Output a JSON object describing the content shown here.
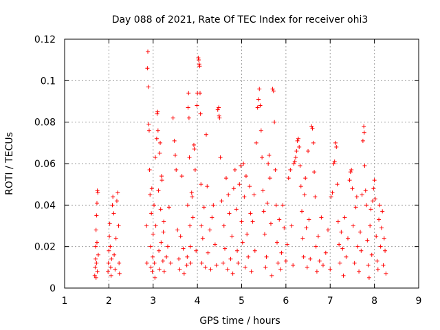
{
  "chart_data": {
    "type": "scatter",
    "title": "Day 088 of 2021, Rate Of TEC Index for receiver ohi3",
    "xlabel": "GPS time / hours",
    "ylabel": "ROTI / TECUs",
    "xlim": [
      1,
      9
    ],
    "ylim": [
      0,
      0.12
    ],
    "x_ticks": [
      1,
      2,
      3,
      4,
      5,
      6,
      7,
      8,
      9
    ],
    "x_tick_labels": [
      "1",
      "2",
      "3",
      "4",
      "5",
      "6",
      "7",
      "8",
      "9"
    ],
    "y_ticks": [
      0,
      0.02,
      0.04,
      0.06,
      0.08,
      0.1,
      0.12
    ],
    "y_tick_labels": [
      "0",
      "0.02",
      "0.04",
      "0.06",
      "0.08",
      "0.1",
      "0.12"
    ],
    "grid": true,
    "marker": "+",
    "color": "#ff0000",
    "series": [
      {
        "points": [
          [
            1.68,
            0.006
          ],
          [
            1.69,
            0.01
          ],
          [
            1.7,
            0.014
          ],
          [
            1.7,
            0.02
          ],
          [
            1.71,
            0.028
          ],
          [
            1.72,
            0.035
          ],
          [
            1.73,
            0.041
          ],
          [
            1.74,
            0.047
          ],
          [
            1.75,
            0.046
          ],
          [
            1.72,
            0.012
          ],
          [
            1.74,
            0.008
          ],
          [
            1.76,
            0.016
          ],
          [
            1.73,
            0.022
          ],
          [
            1.71,
            0.005
          ],
          [
            1.98,
            0.008
          ],
          [
            1.99,
            0.012
          ],
          [
            2.0,
            0.018
          ],
          [
            2.01,
            0.025
          ],
          [
            2.02,
            0.031
          ],
          [
            2.03,
            0.02
          ],
          [
            2.04,
            0.01
          ],
          [
            2.05,
            0.006
          ],
          [
            2.06,
            0.014
          ],
          [
            2.08,
            0.04
          ],
          [
            2.09,
            0.044
          ],
          [
            2.11,
            0.036
          ],
          [
            2.12,
            0.016
          ],
          [
            2.14,
            0.009
          ],
          [
            2.16,
            0.024
          ],
          [
            2.18,
            0.042
          ],
          [
            2.2,
            0.046
          ],
          [
            2.22,
            0.03
          ],
          [
            2.23,
            0.012
          ],
          [
            2.24,
            0.007
          ],
          [
            2.85,
            0.03
          ],
          [
            2.86,
            0.012
          ],
          [
            2.87,
            0.106
          ],
          [
            2.88,
            0.114
          ],
          [
            2.89,
            0.097
          ],
          [
            2.9,
            0.079
          ],
          [
            2.91,
            0.076
          ],
          [
            2.92,
            0.057
          ],
          [
            2.93,
            0.045
          ],
          [
            2.94,
            0.02
          ],
          [
            2.95,
            0.01
          ],
          [
            2.96,
            0.036
          ],
          [
            2.97,
            0.048
          ],
          [
            2.98,
            0.008
          ],
          [
            2.99,
            0.015
          ],
          [
            3.0,
            0.026
          ],
          [
            3.02,
            0.04
          ],
          [
            3.03,
            0.012
          ],
          [
            3.04,
            0.005
          ],
          [
            3.05,
            0.063
          ],
          [
            3.06,
            0.03
          ],
          [
            3.08,
            0.072
          ],
          [
            3.09,
            0.084
          ],
          [
            3.1,
            0.085
          ],
          [
            3.11,
            0.076
          ],
          [
            3.12,
            0.047
          ],
          [
            3.13,
            0.018
          ],
          [
            3.14,
            0.009
          ],
          [
            3.15,
            0.065
          ],
          [
            3.16,
            0.07
          ],
          [
            3.17,
            0.038
          ],
          [
            3.18,
            0.022
          ],
          [
            3.19,
            0.054
          ],
          [
            3.2,
            0.052
          ],
          [
            3.22,
            0.013
          ],
          [
            3.23,
            0.027
          ],
          [
            3.24,
            0.032
          ],
          [
            3.25,
            0.008
          ],
          [
            3.3,
            0.015
          ],
          [
            3.33,
            0.02
          ],
          [
            3.36,
            0.039
          ],
          [
            3.4,
            0.012
          ],
          [
            3.45,
            0.082
          ],
          [
            3.48,
            0.071
          ],
          [
            3.5,
            0.064
          ],
          [
            3.52,
            0.057
          ],
          [
            3.55,
            0.028
          ],
          [
            3.58,
            0.014
          ],
          [
            3.6,
            0.009
          ],
          [
            3.62,
            0.025
          ],
          [
            3.65,
            0.054
          ],
          [
            3.68,
            0.019
          ],
          [
            3.7,
            0.007
          ],
          [
            3.76,
            0.011
          ],
          [
            3.77,
            0.015
          ],
          [
            3.78,
            0.04
          ],
          [
            3.79,
            0.087
          ],
          [
            3.8,
            0.094
          ],
          [
            3.81,
            0.082
          ],
          [
            3.82,
            0.063
          ],
          [
            3.83,
            0.03
          ],
          [
            3.84,
            0.02
          ],
          [
            3.85,
            0.012
          ],
          [
            3.87,
            0.046
          ],
          [
            3.88,
            0.044
          ],
          [
            3.9,
            0.034
          ],
          [
            3.92,
            0.069
          ],
          [
            3.93,
            0.067
          ],
          [
            3.95,
            0.057
          ],
          [
            3.97,
            0.018
          ],
          [
            3.99,
            0.088
          ],
          [
            4.0,
            0.094
          ],
          [
            4.02,
            0.111
          ],
          [
            4.03,
            0.11
          ],
          [
            4.04,
            0.108
          ],
          [
            4.05,
            0.107
          ],
          [
            4.06,
            0.094
          ],
          [
            4.07,
            0.084
          ],
          [
            4.08,
            0.05
          ],
          [
            4.09,
            0.03
          ],
          [
            4.1,
            0.012
          ],
          [
            4.12,
            0.024
          ],
          [
            4.15,
            0.039
          ],
          [
            4.18,
            0.01
          ],
          [
            4.2,
            0.074
          ],
          [
            4.22,
            0.049
          ],
          [
            4.24,
            0.017
          ],
          [
            4.28,
            0.028
          ],
          [
            4.3,
            0.009
          ],
          [
            4.33,
            0.034
          ],
          [
            4.36,
            0.04
          ],
          [
            4.4,
            0.021
          ],
          [
            4.43,
            0.011
          ],
          [
            4.46,
            0.086
          ],
          [
            4.48,
            0.087
          ],
          [
            4.49,
            0.083
          ],
          [
            4.5,
            0.082
          ],
          [
            4.52,
            0.063
          ],
          [
            4.55,
            0.042
          ],
          [
            4.58,
            0.012
          ],
          [
            4.6,
            0.03
          ],
          [
            4.62,
            0.019
          ],
          [
            4.65,
            0.053
          ],
          [
            4.68,
            0.009
          ],
          [
            4.7,
            0.045
          ],
          [
            4.72,
            0.036
          ],
          [
            4.75,
            0.014
          ],
          [
            4.78,
            0.025
          ],
          [
            4.8,
            0.007
          ],
          [
            4.82,
            0.048
          ],
          [
            4.85,
            0.057
          ],
          [
            4.88,
            0.038
          ],
          [
            4.9,
            0.018
          ],
          [
            4.92,
            0.012
          ],
          [
            4.95,
            0.05
          ],
          [
            4.98,
            0.059
          ],
          [
            5.0,
            0.032
          ],
          [
            5.02,
            0.022
          ],
          [
            5.04,
            0.06
          ],
          [
            5.06,
            0.044
          ],
          [
            5.08,
            0.01
          ],
          [
            5.1,
            0.054
          ],
          [
            5.12,
            0.026
          ],
          [
            5.15,
            0.015
          ],
          [
            5.18,
            0.049
          ],
          [
            5.2,
            0.036
          ],
          [
            5.22,
            0.008
          ],
          [
            5.25,
            0.032
          ],
          [
            5.28,
            0.045
          ],
          [
            5.3,
            0.018
          ],
          [
            5.33,
            0.07
          ],
          [
            5.36,
            0.087
          ],
          [
            5.38,
            0.091
          ],
          [
            5.4,
            0.096
          ],
          [
            5.42,
            0.088
          ],
          [
            5.44,
            0.076
          ],
          [
            5.46,
            0.063
          ],
          [
            5.48,
            0.047
          ],
          [
            5.5,
            0.037
          ],
          [
            5.52,
            0.026
          ],
          [
            5.54,
            0.01
          ],
          [
            5.56,
            0.015
          ],
          [
            5.58,
            0.041
          ],
          [
            5.6,
            0.06
          ],
          [
            5.62,
            0.064
          ],
          [
            5.64,
            0.053
          ],
          [
            5.66,
            0.031
          ],
          [
            5.68,
            0.006
          ],
          [
            5.7,
            0.096
          ],
          [
            5.72,
            0.095
          ],
          [
            5.74,
            0.08
          ],
          [
            5.76,
            0.057
          ],
          [
            5.78,
            0.04
          ],
          [
            5.8,
            0.022
          ],
          [
            5.82,
            0.012
          ],
          [
            5.85,
            0.033
          ],
          [
            5.88,
            0.009
          ],
          [
            5.9,
            0.017
          ],
          [
            5.93,
            0.04
          ],
          [
            5.96,
            0.029
          ],
          [
            6.0,
            0.013
          ],
          [
            6.03,
            0.021
          ],
          [
            6.06,
            0.053
          ],
          [
            6.1,
            0.057
          ],
          [
            6.13,
            0.03
          ],
          [
            6.16,
            0.011
          ],
          [
            6.18,
            0.06
          ],
          [
            6.2,
            0.061
          ],
          [
            6.22,
            0.063
          ],
          [
            6.24,
            0.066
          ],
          [
            6.26,
            0.071
          ],
          [
            6.28,
            0.072
          ],
          [
            6.3,
            0.068
          ],
          [
            6.32,
            0.059
          ],
          [
            6.34,
            0.049
          ],
          [
            6.36,
            0.037
          ],
          [
            6.38,
            0.024
          ],
          [
            6.4,
            0.015
          ],
          [
            6.42,
            0.045
          ],
          [
            6.44,
            0.053
          ],
          [
            6.46,
            0.029
          ],
          [
            6.48,
            0.01
          ],
          [
            6.5,
            0.066
          ],
          [
            6.52,
            0.033
          ],
          [
            6.55,
            0.014
          ],
          [
            6.58,
            0.078
          ],
          [
            6.6,
            0.077
          ],
          [
            6.62,
            0.07
          ],
          [
            6.64,
            0.056
          ],
          [
            6.66,
            0.044
          ],
          [
            6.68,
            0.02
          ],
          [
            6.7,
            0.008
          ],
          [
            6.73,
            0.025
          ],
          [
            6.76,
            0.013
          ],
          [
            6.8,
            0.034
          ],
          [
            6.84,
            0.011
          ],
          [
            6.9,
            0.017
          ],
          [
            6.95,
            0.028
          ],
          [
            7.0,
            0.009
          ],
          [
            7.02,
            0.044
          ],
          [
            7.05,
            0.046
          ],
          [
            7.08,
            0.06
          ],
          [
            7.1,
            0.061
          ],
          [
            7.12,
            0.07
          ],
          [
            7.14,
            0.068
          ],
          [
            7.16,
            0.05
          ],
          [
            7.18,
            0.032
          ],
          [
            7.2,
            0.021
          ],
          [
            7.22,
            0.012
          ],
          [
            7.25,
            0.027
          ],
          [
            7.28,
            0.019
          ],
          [
            7.3,
            0.006
          ],
          [
            7.33,
            0.034
          ],
          [
            7.36,
            0.015
          ],
          [
            7.4,
            0.024
          ],
          [
            7.44,
            0.052
          ],
          [
            7.46,
            0.056
          ],
          [
            7.48,
            0.057
          ],
          [
            7.5,
            0.048
          ],
          [
            7.52,
            0.03
          ],
          [
            7.55,
            0.012
          ],
          [
            7.58,
            0.039
          ],
          [
            7.6,
            0.044
          ],
          [
            7.62,
            0.02
          ],
          [
            7.65,
            0.008
          ],
          [
            7.68,
            0.027
          ],
          [
            7.7,
            0.018
          ],
          [
            7.72,
            0.045
          ],
          [
            7.74,
            0.071
          ],
          [
            7.76,
            0.078
          ],
          [
            7.77,
            0.075
          ],
          [
            7.78,
            0.059
          ],
          [
            7.8,
            0.047
          ],
          [
            7.82,
            0.04
          ],
          [
            7.84,
            0.023
          ],
          [
            7.86,
            0.011
          ],
          [
            7.88,
            0.005
          ],
          [
            7.9,
            0.03
          ],
          [
            7.92,
            0.038
          ],
          [
            7.94,
            0.016
          ],
          [
            7.96,
            0.042
          ],
          [
            7.98,
            0.048
          ],
          [
            8.0,
            0.052
          ],
          [
            8.02,
            0.043
          ],
          [
            8.04,
            0.025
          ],
          [
            8.06,
            0.013
          ],
          [
            8.08,
            0.009
          ],
          [
            8.1,
            0.033
          ],
          [
            8.12,
            0.04
          ],
          [
            8.14,
            0.02
          ],
          [
            8.16,
            0.029
          ],
          [
            8.18,
            0.037
          ],
          [
            8.2,
            0.011
          ],
          [
            8.22,
            0.024
          ],
          [
            8.24,
            0.018
          ],
          [
            8.26,
            0.007
          ]
        ]
      }
    ]
  }
}
